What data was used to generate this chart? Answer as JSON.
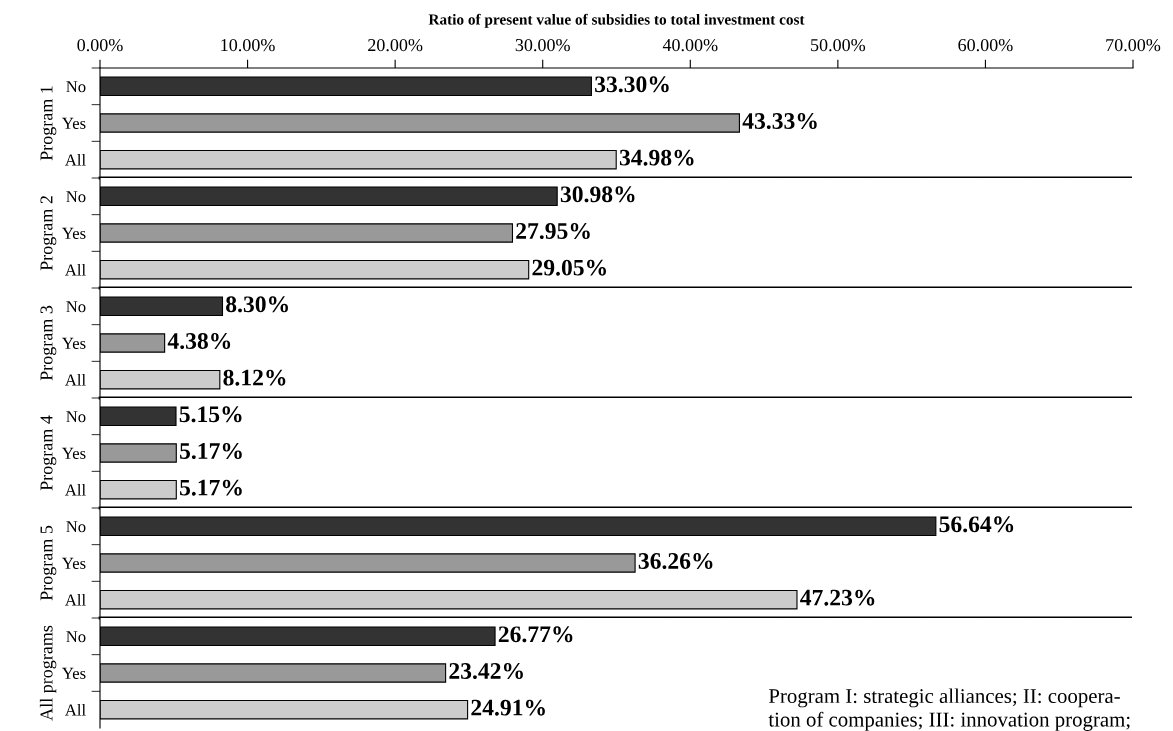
{
  "chart_data": [
    {
      "type": "bar",
      "orientation": "horizontal",
      "xlabel": "Ratio of present value of subsidies to total investment cost",
      "ylabel": "Program 1",
      "categories": [
        "No",
        "Yes",
        "All"
      ],
      "values": [
        33.3,
        43.33,
        34.98
      ],
      "value_labels": [
        "33.30%",
        "43.33%",
        "34.98%"
      ],
      "colors": [
        "#333333",
        "#999999",
        "#cccccc"
      ],
      "xlim": [
        0,
        70
      ],
      "xticks": [
        {
          "value": 0,
          "label": "0.00%"
        },
        {
          "value": 10,
          "label": "10.00%"
        },
        {
          "value": 20,
          "label": "20.00%"
        },
        {
          "value": 30,
          "label": "30.00%"
        },
        {
          "value": 40,
          "label": "40.00%"
        },
        {
          "value": 50,
          "label": "50.00%"
        },
        {
          "value": 60,
          "label": "60.00%"
        },
        {
          "value": 70,
          "label": "70.00%"
        }
      ],
      "grid": false,
      "legend": false
    },
    {
      "type": "bar",
      "orientation": "horizontal",
      "ylabel": "Program 2",
      "categories": [
        "No",
        "Yes",
        "All"
      ],
      "values": [
        30.98,
        27.95,
        29.05
      ],
      "value_labels": [
        "30.98%",
        "27.95%",
        "29.05%"
      ],
      "colors": [
        "#333333",
        "#999999",
        "#cccccc"
      ],
      "xlim": [
        0,
        70
      ],
      "tick_labels": "y",
      "grid": false,
      "legend": false
    },
    {
      "type": "bar",
      "orientation": "horizontal",
      "ylabel": "Program 3",
      "categories": [
        "No",
        "Yes",
        "All"
      ],
      "values": [
        8.3,
        4.38,
        8.12
      ],
      "value_labels": [
        "8.30%",
        "4.38%",
        "8.12%"
      ],
      "colors": [
        "#333333",
        "#999999",
        "#cccccc"
      ],
      "xlim": [
        0,
        70
      ],
      "tick_labels": "y",
      "grid": false,
      "legend": false
    },
    {
      "type": "bar",
      "orientation": "horizontal",
      "ylabel": "Program 4",
      "categories": [
        "No",
        "Yes",
        "All"
      ],
      "values": [
        5.15,
        5.17,
        5.17
      ],
      "value_labels": [
        "5.15%",
        "5.17%",
        "5.17%"
      ],
      "colors": [
        "#333333",
        "#999999",
        "#cccccc"
      ],
      "xlim": [
        0,
        70
      ],
      "tick_labels": "y",
      "grid": false,
      "legend": false
    },
    {
      "type": "bar",
      "orientation": "horizontal",
      "ylabel": "Program 5",
      "categories": [
        "No",
        "Yes",
        "All"
      ],
      "values": [
        56.64,
        36.26,
        47.23
      ],
      "value_labels": [
        "56.64%",
        "36.26%",
        "47.23%"
      ],
      "colors": [
        "#333333",
        "#999999",
        "#cccccc"
      ],
      "xlim": [
        0,
        70
      ],
      "tick_labels": "y",
      "grid": false,
      "legend": false
    },
    {
      "type": "bar",
      "orientation": "horizontal",
      "ylabel": "All programs",
      "categories": [
        "No",
        "Yes",
        "All"
      ],
      "values": [
        26.77,
        23.42,
        24.91
      ],
      "value_labels": [
        "26.77%",
        "23.42%",
        "24.91%"
      ],
      "colors": [
        "#333333",
        "#999999",
        "#cccccc"
      ],
      "xlim": [
        0,
        70
      ],
      "tick_labels": "y",
      "grid": false,
      "legend": false,
      "annotations": [
        "Program I: strategic alliances; II: coopera-\ntion of companies; III: innovation program;"
      ]
    }
  ]
}
